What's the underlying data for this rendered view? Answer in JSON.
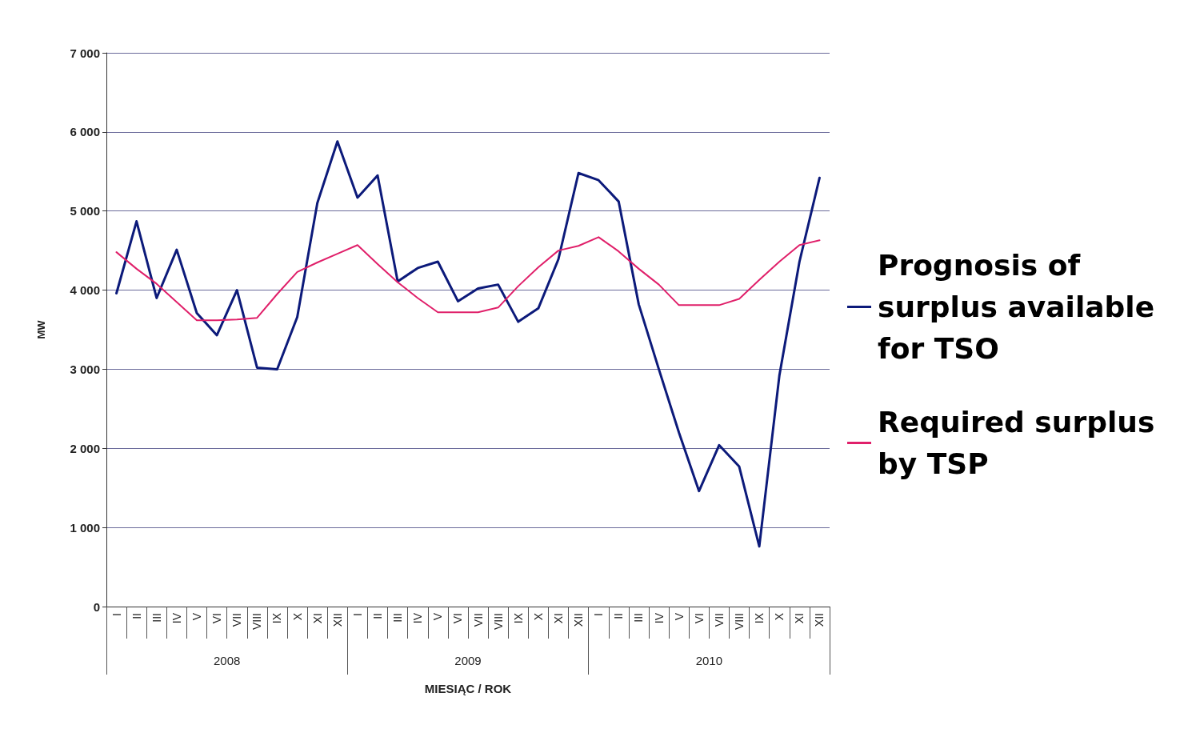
{
  "chart_data": {
    "type": "line",
    "ylabel": "MW",
    "xlabel": "MIESIĄC / ROK",
    "categories": [
      "I",
      "II",
      "III",
      "IV",
      "V",
      "VI",
      "VII",
      "VIII",
      "IX",
      "X",
      "XI",
      "XII",
      "I",
      "II",
      "III",
      "IV",
      "V",
      "VI",
      "VII",
      "VIII",
      "IX",
      "X",
      "XI",
      "XII",
      "I",
      "II",
      "III",
      "IV",
      "V",
      "VI",
      "VII",
      "VIII",
      "IX",
      "X",
      "XI",
      "XII"
    ],
    "annotations": [
      "2008",
      "2009",
      "2010"
    ],
    "series": [
      {
        "name": "Prognosis of surplus available for TSO",
        "color": "#0c1a7a",
        "values": [
          3960,
          4870,
          3900,
          4510,
          3710,
          3430,
          4000,
          3020,
          3000,
          3660,
          5100,
          5880,
          5170,
          5450,
          4110,
          4280,
          4360,
          3860,
          4020,
          4070,
          3600,
          3770,
          4390,
          5480,
          5390,
          5120,
          3820,
          3000,
          2200,
          1460,
          2040,
          1770,
          760,
          2920,
          4360,
          5420
        ]
      },
      {
        "name": "Required surplus by TSP",
        "color": "#e0206a",
        "values": [
          4480,
          4270,
          4080,
          3850,
          3620,
          3620,
          3630,
          3650,
          3950,
          4230,
          4350,
          4460,
          4570,
          4330,
          4100,
          3900,
          3720,
          3720,
          3720,
          3780,
          4050,
          4290,
          4500,
          4560,
          4670,
          4490,
          4270,
          4070,
          3810,
          3810,
          3810,
          3890,
          4130,
          4360,
          4570,
          4630
        ]
      }
    ],
    "ylim": [
      0,
      7000
    ],
    "yticks": [
      {
        "value": 0,
        "label": "0"
      },
      {
        "value": 1000,
        "label": "1 000"
      },
      {
        "value": 2000,
        "label": "2 000"
      },
      {
        "value": 3000,
        "label": "3 000"
      },
      {
        "value": 4000,
        "label": "4 000"
      },
      {
        "value": 5000,
        "label": "5 000"
      },
      {
        "value": 6000,
        "label": "6 000"
      },
      {
        "value": 7000,
        "label": "7 000"
      }
    ],
    "grid": "y",
    "legend": "right",
    "marker": "none",
    "line_style": "solid"
  }
}
